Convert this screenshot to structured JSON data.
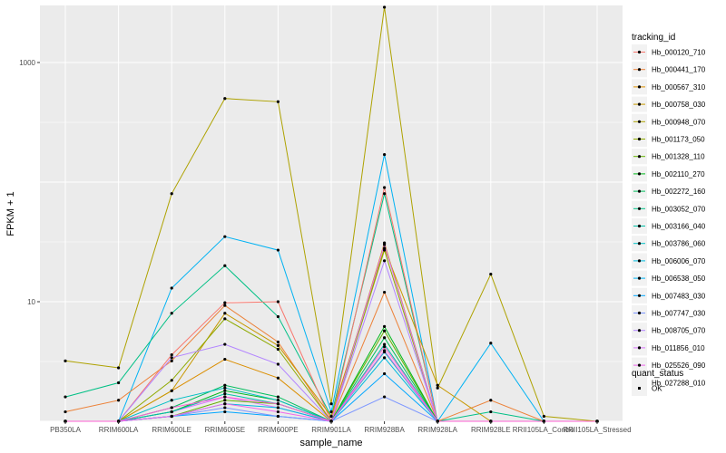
{
  "chart_data": {
    "type": "line",
    "title": "",
    "xlabel": "sample_name",
    "ylabel": "FPKM + 1",
    "y_scale": "log10",
    "ylim": [
      1,
      3000
    ],
    "y_ticks": [
      10,
      1000
    ],
    "y_tick_labels": [
      "10",
      "1000"
    ],
    "grid": true,
    "panel_background": "#ebebeb",
    "legend_position": "right",
    "categories": [
      "PB350LA",
      "RRIM600LA",
      "RRIM600LE",
      "RRIM600SE",
      "RRIM600PE",
      "RRIM901LA",
      "RRIM928BA",
      "RRIM928LA",
      "RRIM928LE",
      "RRII105LA_Control",
      "RRII105LA_Stressed"
    ],
    "legend_tracking": {
      "title": "tracking_id",
      "items": [
        {
          "label": "Hb_000120_710",
          "color": "#F8766D"
        },
        {
          "label": "Hb_000441_170",
          "color": "#EC8239"
        },
        {
          "label": "Hb_000567_310",
          "color": "#DB8E00"
        },
        {
          "label": "Hb_000758_030",
          "color": "#C79800"
        },
        {
          "label": "Hb_000948_070",
          "color": "#AEA200"
        },
        {
          "label": "Hb_001173_050",
          "color": "#8FAA00"
        },
        {
          "label": "Hb_001328_110",
          "color": "#64B200"
        },
        {
          "label": "Hb_002110_270",
          "color": "#00B81B"
        },
        {
          "label": "Hb_002272_160",
          "color": "#00BD5C"
        },
        {
          "label": "Hb_003052_070",
          "color": "#00C085"
        },
        {
          "label": "Hb_003166_040",
          "color": "#00C1A7"
        },
        {
          "label": "Hb_003786_060",
          "color": "#00BFC4"
        },
        {
          "label": "Hb_006006_070",
          "color": "#00BADE"
        },
        {
          "label": "Hb_006538_050",
          "color": "#00B2F3"
        },
        {
          "label": "Hb_007483_030",
          "color": "#00A6FF"
        },
        {
          "label": "Hb_007747_030",
          "color": "#7C96FF"
        },
        {
          "label": "Hb_008705_070",
          "color": "#B385FF"
        },
        {
          "label": "Hb_011856_010",
          "color": "#D874FD"
        },
        {
          "label": "Hb_025526_090",
          "color": "#EF67EB"
        },
        {
          "label": "Hb_027288_010",
          "color": "#FD61D3"
        }
      ]
    },
    "legend_status": {
      "title": "quant_status",
      "items": [
        {
          "label": "OK"
        }
      ]
    },
    "series": [
      {
        "color": "#AEA200",
        "values": [
          3.2,
          2.8,
          80,
          500,
          470,
          1.4,
          2900,
          1.9,
          17,
          1.1,
          1
        ]
      },
      {
        "color": "#00B2F3",
        "values": [
          1,
          1,
          13,
          35,
          27,
          1.2,
          170,
          1,
          4.5,
          1,
          1
        ]
      },
      {
        "color": "#00C085",
        "values": [
          1.6,
          2.1,
          8,
          20,
          7.5,
          1.1,
          80,
          1,
          1.2,
          1,
          1
        ]
      },
      {
        "color": "#F8766D",
        "values": [
          1,
          1,
          3.6,
          9.8,
          10,
          1,
          90,
          1,
          1,
          1,
          1
        ]
      },
      {
        "color": "#EC8239",
        "values": [
          1.2,
          1.5,
          3.2,
          9.3,
          4.6,
          1,
          12,
          1,
          1.5,
          1,
          1
        ]
      },
      {
        "color": "#DB8E00",
        "values": [
          1,
          1,
          1.8,
          3.3,
          2.3,
          1,
          31,
          1,
          1,
          1,
          1
        ]
      },
      {
        "color": "#C79800",
        "values": [
          1,
          1,
          1.8,
          8,
          4.3,
          1.1,
          28,
          2,
          1,
          1,
          1
        ]
      },
      {
        "color": "#8FAA00",
        "values": [
          1,
          1,
          2.2,
          7.2,
          4,
          1,
          27,
          1,
          1,
          1,
          1
        ]
      },
      {
        "color": "#B385FF",
        "values": [
          1,
          1,
          3.4,
          4.4,
          3,
          1,
          22,
          1,
          1,
          1,
          1
        ]
      },
      {
        "color": "#D874FD",
        "values": [
          1,
          1,
          1.2,
          1.6,
          1.3,
          1,
          30,
          1,
          1,
          1,
          1
        ]
      },
      {
        "color": "#64B200",
        "values": [
          1,
          1,
          1.1,
          1.5,
          1.4,
          1,
          5.7,
          1,
          1,
          1,
          1
        ]
      },
      {
        "color": "#00B81B",
        "values": [
          1,
          1,
          1.2,
          1.8,
          1.5,
          1,
          6.2,
          1,
          1,
          1,
          1
        ]
      },
      {
        "color": "#00BD5C",
        "values": [
          1,
          1,
          1.3,
          2,
          1.6,
          1,
          5,
          1,
          1,
          1,
          1
        ]
      },
      {
        "color": "#00C1A7",
        "values": [
          1,
          1,
          1.2,
          1.7,
          1.4,
          1,
          4.4,
          1,
          1,
          1,
          1
        ]
      },
      {
        "color": "#00BFC4",
        "values": [
          1,
          1,
          1.5,
          1.9,
          1.5,
          1,
          3.8,
          1,
          1,
          1,
          1
        ]
      },
      {
        "color": "#00BADE",
        "values": [
          1,
          1,
          1.1,
          1.4,
          1.3,
          1,
          3.4,
          1,
          1,
          1,
          1
        ]
      },
      {
        "color": "#00A6FF",
        "values": [
          1,
          1,
          1.1,
          1.2,
          1.1,
          1,
          2.5,
          1,
          1,
          1,
          1
        ]
      },
      {
        "color": "#7C96FF",
        "values": [
          1,
          1,
          1.1,
          1.3,
          1.1,
          1,
          1.6,
          1,
          1,
          1,
          1
        ]
      },
      {
        "color": "#EF67EB",
        "values": [
          1,
          1,
          1.1,
          1.4,
          1.2,
          1,
          3.9,
          1,
          1,
          1,
          1
        ]
      },
      {
        "color": "#FD61D3",
        "values": [
          1,
          1,
          1.3,
          1.6,
          1.4,
          1,
          4.2,
          1,
          1,
          1,
          1
        ]
      }
    ]
  }
}
